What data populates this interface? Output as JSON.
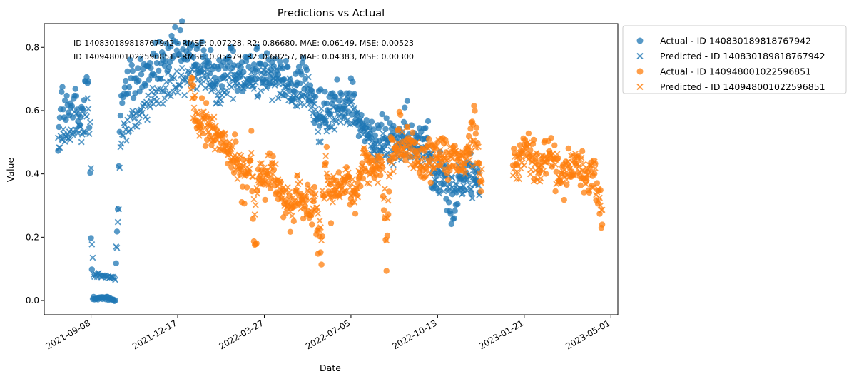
{
  "chart_data": {
    "type": "scatter",
    "title": "Predictions vs Actual",
    "xlabel": "Date",
    "ylabel": "Value",
    "x_is_date": true,
    "xlim": [
      "2021-07-16",
      "2023-05-09"
    ],
    "ylim": [
      -0.045,
      0.875
    ],
    "x_ticks": [
      "2021-09-08",
      "2021-12-17",
      "2022-03-27",
      "2022-07-05",
      "2022-10-13",
      "2023-01-21",
      "2023-05-01"
    ],
    "y_ticks": [
      "0.0",
      "0.2",
      "0.4",
      "0.6",
      "0.8"
    ],
    "y_tick_values": [
      0,
      0.2,
      0.4,
      0.6,
      0.8
    ],
    "grid": false,
    "legend_placement": "outside upper right",
    "annotations": [
      "ID 140830189818767942 - RMSE: 0.07228, R2: 0.86680, MAE: 0.06149, MSE: 0.00523",
      "ID 140948001022596851 - RMSE: 0.05479, R2: 0.68257, MAE: 0.04383, MSE: 0.00300"
    ],
    "series": [
      {
        "name": "Actual - ID 140830189818767942",
        "marker": "circle",
        "color": "#1f77b4",
        "anchors": [
          [
            "2021-08-01",
            0.52
          ],
          [
            "2021-08-06",
            0.64
          ],
          [
            "2021-08-13",
            0.58
          ],
          [
            "2021-08-20",
            0.62
          ],
          [
            "2021-08-27",
            0.56
          ],
          [
            "2021-09-01",
            0.66
          ],
          [
            "2021-09-05",
            0.69
          ],
          [
            "2021-09-07",
            0.42
          ],
          [
            "2021-09-08",
            0.19
          ],
          [
            "2021-09-10",
            0.011
          ],
          [
            "2021-09-25",
            0.006
          ],
          [
            "2021-10-06",
            0.003
          ],
          [
            "2021-10-09",
            0.33
          ],
          [
            "2021-10-12",
            0.63
          ],
          [
            "2021-10-20",
            0.68
          ],
          [
            "2021-11-10",
            0.72
          ],
          [
            "2021-12-01",
            0.76
          ],
          [
            "2021-12-20",
            0.79
          ],
          [
            "2022-01-10",
            0.76
          ],
          [
            "2022-02-01",
            0.72
          ],
          [
            "2022-02-20",
            0.74
          ],
          [
            "2022-03-10",
            0.72
          ],
          [
            "2022-03-27",
            0.75
          ],
          [
            "2022-04-15",
            0.73
          ],
          [
            "2022-05-01",
            0.69
          ],
          [
            "2022-05-10",
            0.74
          ],
          [
            "2022-05-25",
            0.59
          ],
          [
            "2022-06-10",
            0.62
          ],
          [
            "2022-06-25",
            0.64
          ],
          [
            "2022-07-05",
            0.66
          ],
          [
            "2022-07-15",
            0.55
          ],
          [
            "2022-08-01",
            0.51
          ],
          [
            "2022-08-20",
            0.52
          ],
          [
            "2022-09-05",
            0.53
          ],
          [
            "2022-09-20",
            0.49
          ],
          [
            "2022-10-01",
            0.55
          ],
          [
            "2022-10-08",
            0.36
          ],
          [
            "2022-10-15",
            0.45
          ],
          [
            "2022-10-25",
            0.33
          ],
          [
            "2022-11-01",
            0.29
          ],
          [
            "2022-11-10",
            0.4
          ],
          [
            "2022-11-20",
            0.37
          ],
          [
            "2022-11-30",
            0.41
          ]
        ]
      },
      {
        "name": "Predicted - ID 140830189818767942",
        "marker": "x",
        "color": "#1f77b4",
        "anchors": [
          [
            "2021-08-01",
            0.47
          ],
          [
            "2021-08-08",
            0.53
          ],
          [
            "2021-08-15",
            0.51
          ],
          [
            "2021-08-22",
            0.56
          ],
          [
            "2021-08-29",
            0.52
          ],
          [
            "2021-09-03",
            0.59
          ],
          [
            "2021-09-07",
            0.58
          ],
          [
            "2021-09-08",
            0.42
          ],
          [
            "2021-09-09",
            0.17
          ],
          [
            "2021-09-11",
            0.085
          ],
          [
            "2021-09-25",
            0.075
          ],
          [
            "2021-10-06",
            0.07
          ],
          [
            "2021-10-09",
            0.25
          ],
          [
            "2021-10-12",
            0.5
          ],
          [
            "2021-10-25",
            0.57
          ],
          [
            "2021-11-15",
            0.62
          ],
          [
            "2021-12-05",
            0.68
          ],
          [
            "2021-12-25",
            0.71
          ],
          [
            "2022-01-15",
            0.72
          ],
          [
            "2022-02-05",
            0.66
          ],
          [
            "2022-02-25",
            0.7
          ],
          [
            "2022-03-15",
            0.68
          ],
          [
            "2022-03-30",
            0.71
          ],
          [
            "2022-04-15",
            0.68
          ],
          [
            "2022-05-05",
            0.64
          ],
          [
            "2022-05-15",
            0.66
          ],
          [
            "2022-05-30",
            0.55
          ],
          [
            "2022-06-15",
            0.57
          ],
          [
            "2022-06-28",
            0.61
          ],
          [
            "2022-07-10",
            0.6
          ],
          [
            "2022-07-20",
            0.52
          ],
          [
            "2022-08-05",
            0.48
          ],
          [
            "2022-08-25",
            0.47
          ],
          [
            "2022-09-10",
            0.49
          ],
          [
            "2022-09-25",
            0.46
          ],
          [
            "2022-10-05",
            0.47
          ],
          [
            "2022-10-10",
            0.37
          ],
          [
            "2022-10-20",
            0.41
          ],
          [
            "2022-11-01",
            0.35
          ],
          [
            "2022-11-12",
            0.37
          ],
          [
            "2022-11-22",
            0.38
          ],
          [
            "2022-11-30",
            0.38
          ]
        ]
      },
      {
        "name": "Actual - ID 140948001022596851",
        "marker": "circle",
        "color": "#ff7f0e",
        "anchors": [
          [
            "2022-01-01",
            0.7
          ],
          [
            "2022-01-08",
            0.55
          ],
          [
            "2022-01-15",
            0.58
          ],
          [
            "2022-01-25",
            0.52
          ],
          [
            "2022-02-05",
            0.5
          ],
          [
            "2022-02-15",
            0.46
          ],
          [
            "2022-02-25",
            0.42
          ],
          [
            "2022-03-05",
            0.36
          ],
          [
            "2022-03-12",
            0.48
          ],
          [
            "2022-03-16",
            0.14
          ],
          [
            "2022-03-20",
            0.4
          ],
          [
            "2022-03-27",
            0.37
          ],
          [
            "2022-04-05",
            0.4
          ],
          [
            "2022-04-15",
            0.34
          ],
          [
            "2022-04-25",
            0.28
          ],
          [
            "2022-05-05",
            0.33
          ],
          [
            "2022-05-15",
            0.29
          ],
          [
            "2022-05-25",
            0.27
          ],
          [
            "2022-06-01",
            0.12
          ],
          [
            "2022-06-05",
            0.47
          ],
          [
            "2022-06-12",
            0.3
          ],
          [
            "2022-06-20",
            0.35
          ],
          [
            "2022-07-01",
            0.38
          ],
          [
            "2022-07-10",
            0.3
          ],
          [
            "2022-07-20",
            0.46
          ],
          [
            "2022-08-01",
            0.4
          ],
          [
            "2022-08-10",
            0.44
          ],
          [
            "2022-08-15",
            0.12
          ],
          [
            "2022-08-20",
            0.49
          ],
          [
            "2022-09-01",
            0.52
          ],
          [
            "2022-09-15",
            0.48
          ],
          [
            "2022-10-01",
            0.44
          ],
          [
            "2022-10-15",
            0.47
          ],
          [
            "2022-11-01",
            0.45
          ],
          [
            "2022-11-15",
            0.44
          ],
          [
            "2022-11-25",
            0.61
          ],
          [
            "2022-12-01",
            0.36
          ],
          [
            "2023-01-10",
            0.43
          ],
          [
            "2023-01-21",
            0.5
          ],
          [
            "2023-02-05",
            0.42
          ],
          [
            "2023-02-20",
            0.47
          ],
          [
            "2023-03-05",
            0.4
          ],
          [
            "2023-03-20",
            0.44
          ],
          [
            "2023-04-01",
            0.38
          ],
          [
            "2023-04-10",
            0.41
          ],
          [
            "2023-04-15",
            0.33
          ],
          [
            "2023-04-21",
            0.23
          ]
        ]
      },
      {
        "name": "Predicted - ID 140948001022596851",
        "marker": "x",
        "color": "#ff7f0e",
        "anchors": [
          [
            "2022-01-01",
            0.68
          ],
          [
            "2022-01-08",
            0.56
          ],
          [
            "2022-01-15",
            0.57
          ],
          [
            "2022-01-25",
            0.54
          ],
          [
            "2022-02-05",
            0.51
          ],
          [
            "2022-02-15",
            0.48
          ],
          [
            "2022-02-25",
            0.44
          ],
          [
            "2022-03-05",
            0.4
          ],
          [
            "2022-03-12",
            0.46
          ],
          [
            "2022-03-16",
            0.26
          ],
          [
            "2022-03-20",
            0.41
          ],
          [
            "2022-03-27",
            0.39
          ],
          [
            "2022-04-05",
            0.42
          ],
          [
            "2022-04-15",
            0.36
          ],
          [
            "2022-04-25",
            0.31
          ],
          [
            "2022-05-05",
            0.34
          ],
          [
            "2022-05-15",
            0.31
          ],
          [
            "2022-05-25",
            0.29
          ],
          [
            "2022-06-01",
            0.22
          ],
          [
            "2022-06-05",
            0.45
          ],
          [
            "2022-06-12",
            0.33
          ],
          [
            "2022-06-20",
            0.36
          ],
          [
            "2022-07-01",
            0.39
          ],
          [
            "2022-07-10",
            0.33
          ],
          [
            "2022-07-20",
            0.45
          ],
          [
            "2022-08-01",
            0.41
          ],
          [
            "2022-08-10",
            0.43
          ],
          [
            "2022-08-15",
            0.22
          ],
          [
            "2022-08-20",
            0.47
          ],
          [
            "2022-09-01",
            0.5
          ],
          [
            "2022-09-15",
            0.47
          ],
          [
            "2022-10-01",
            0.43
          ],
          [
            "2022-10-15",
            0.46
          ],
          [
            "2022-11-01",
            0.45
          ],
          [
            "2022-11-15",
            0.44
          ],
          [
            "2022-11-25",
            0.5
          ],
          [
            "2022-12-01",
            0.38
          ],
          [
            "2023-01-10",
            0.42
          ],
          [
            "2023-01-21",
            0.47
          ],
          [
            "2023-02-05",
            0.42
          ],
          [
            "2023-02-20",
            0.45
          ],
          [
            "2023-03-05",
            0.4
          ],
          [
            "2023-03-20",
            0.43
          ],
          [
            "2023-04-01",
            0.39
          ],
          [
            "2023-04-10",
            0.4
          ],
          [
            "2023-04-15",
            0.35
          ],
          [
            "2023-04-21",
            0.29
          ]
        ]
      }
    ]
  }
}
